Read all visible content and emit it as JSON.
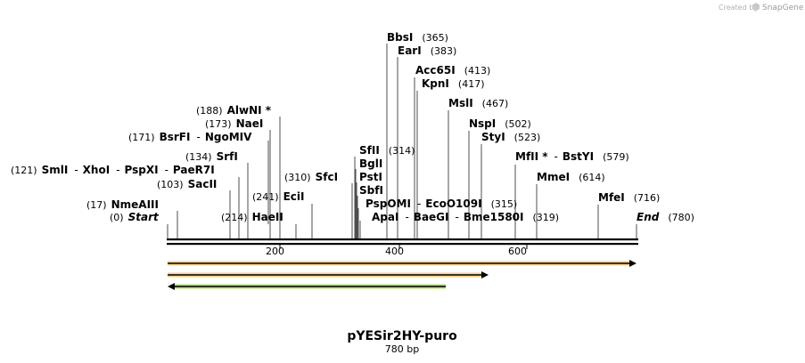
{
  "credit": {
    "prefix": "Created by",
    "brand": "SnapGene",
    "icon": "snapgene-logo-icon"
  },
  "title": "pYESir2HY-puro",
  "length_label": "780 bp",
  "axis": {
    "ticks": [
      "200",
      "400",
      "600"
    ]
  },
  "labels": [
    {
      "parts": [
        {
          "t": "(0)",
          "k": "num"
        },
        {
          "t": "Start",
          "k": "it"
        }
      ]
    },
    {
      "parts": [
        {
          "t": "(17)",
          "k": "num"
        },
        {
          "t": "NmeAIII",
          "k": "name"
        }
      ]
    },
    {
      "parts": [
        {
          "t": "(103)",
          "k": "num"
        },
        {
          "t": "SacII",
          "k": "name"
        }
      ]
    },
    {
      "parts": [
        {
          "t": "(121)",
          "k": "num"
        },
        {
          "t": "SmlI",
          "k": "name"
        },
        {
          "t": "-",
          "k": "sep"
        },
        {
          "t": "XhoI",
          "k": "name"
        },
        {
          "t": "-",
          "k": "sep"
        },
        {
          "t": "PspXI",
          "k": "name"
        },
        {
          "t": "-",
          "k": "sep"
        },
        {
          "t": "PaeR7I",
          "k": "name"
        }
      ]
    },
    {
      "parts": [
        {
          "t": "(134)",
          "k": "num"
        },
        {
          "t": "SrfI",
          "k": "name"
        }
      ]
    },
    {
      "parts": [
        {
          "t": "(171)",
          "k": "num"
        },
        {
          "t": "BsrFI",
          "k": "name"
        },
        {
          "t": "-",
          "k": "sep"
        },
        {
          "t": "NgoMIV",
          "k": "name"
        }
      ]
    },
    {
      "parts": [
        {
          "t": "(173)",
          "k": "num"
        },
        {
          "t": "NaeI",
          "k": "name"
        }
      ]
    },
    {
      "parts": [
        {
          "t": "(188)",
          "k": "num"
        },
        {
          "t": "AlwNI *",
          "k": "name"
        }
      ]
    },
    {
      "parts": [
        {
          "t": "(214)",
          "k": "num"
        },
        {
          "t": "HaeII",
          "k": "name"
        }
      ]
    },
    {
      "parts": [
        {
          "t": "(241)",
          "k": "num"
        },
        {
          "t": "EciI",
          "k": "name"
        }
      ]
    },
    {
      "parts": [
        {
          "t": "(310)",
          "k": "num"
        },
        {
          "t": "SfcI",
          "k": "name"
        }
      ]
    },
    {
      "parts": [
        {
          "t": "SfII",
          "k": "name"
        },
        {
          "t": "(314)",
          "k": "num"
        }
      ]
    },
    {
      "parts": [
        {
          "t": "BglI",
          "k": "name"
        }
      ]
    },
    {
      "parts": [
        {
          "t": "PstI",
          "k": "name"
        }
      ]
    },
    {
      "parts": [
        {
          "t": "SbfI",
          "k": "name"
        }
      ]
    },
    {
      "parts": [
        {
          "t": "PspOMI",
          "k": "name"
        },
        {
          "t": "-",
          "k": "sep"
        },
        {
          "t": "EcoO109I",
          "k": "name"
        },
        {
          "t": "(315)",
          "k": "num"
        }
      ]
    },
    {
      "parts": [
        {
          "t": "ApaI",
          "k": "name"
        },
        {
          "t": "-",
          "k": "sep"
        },
        {
          "t": "BaeGI",
          "k": "name"
        },
        {
          "t": "-",
          "k": "sep"
        },
        {
          "t": "Bme1580I",
          "k": "name"
        },
        {
          "t": "(319)",
          "k": "num"
        }
      ]
    },
    {
      "parts": [
        {
          "t": "BbsI",
          "k": "name"
        },
        {
          "t": "(365)",
          "k": "num"
        }
      ]
    },
    {
      "parts": [
        {
          "t": "EarI",
          "k": "name"
        },
        {
          "t": "(383)",
          "k": "num"
        }
      ]
    },
    {
      "parts": [
        {
          "t": "Acc65I",
          "k": "name"
        },
        {
          "t": "(413)",
          "k": "num"
        }
      ]
    },
    {
      "parts": [
        {
          "t": "KpnI",
          "k": "name"
        },
        {
          "t": "(417)",
          "k": "num"
        }
      ]
    },
    {
      "parts": [
        {
          "t": "MslI",
          "k": "name"
        },
        {
          "t": "(467)",
          "k": "num"
        }
      ]
    },
    {
      "parts": [
        {
          "t": "NspI",
          "k": "name"
        },
        {
          "t": "(502)",
          "k": "num"
        }
      ]
    },
    {
      "parts": [
        {
          "t": "StyI",
          "k": "name"
        },
        {
          "t": "(523)",
          "k": "num"
        }
      ]
    },
    {
      "parts": [
        {
          "t": "MfII *",
          "k": "name"
        },
        {
          "t": "-",
          "k": "sep"
        },
        {
          "t": "BstYI",
          "k": "name"
        },
        {
          "t": "(579)",
          "k": "num"
        }
      ]
    },
    {
      "parts": [
        {
          "t": "MmeI",
          "k": "name"
        },
        {
          "t": "(614)",
          "k": "num"
        }
      ]
    },
    {
      "parts": [
        {
          "t": "MfeI",
          "k": "name"
        },
        {
          "t": "(716)",
          "k": "num"
        }
      ]
    },
    {
      "parts": [
        {
          "t": "End",
          "k": "it"
        },
        {
          "t": "(780)",
          "k": "num"
        }
      ]
    }
  ],
  "features": [
    {
      "name": "orange-feature-full",
      "color": "#f3a62a",
      "direction": "forward"
    },
    {
      "name": "orange-feature-partial",
      "color": "#f3a62a",
      "direction": "forward"
    },
    {
      "name": "green-feature",
      "color": "#8bc83a",
      "direction": "reverse"
    }
  ]
}
